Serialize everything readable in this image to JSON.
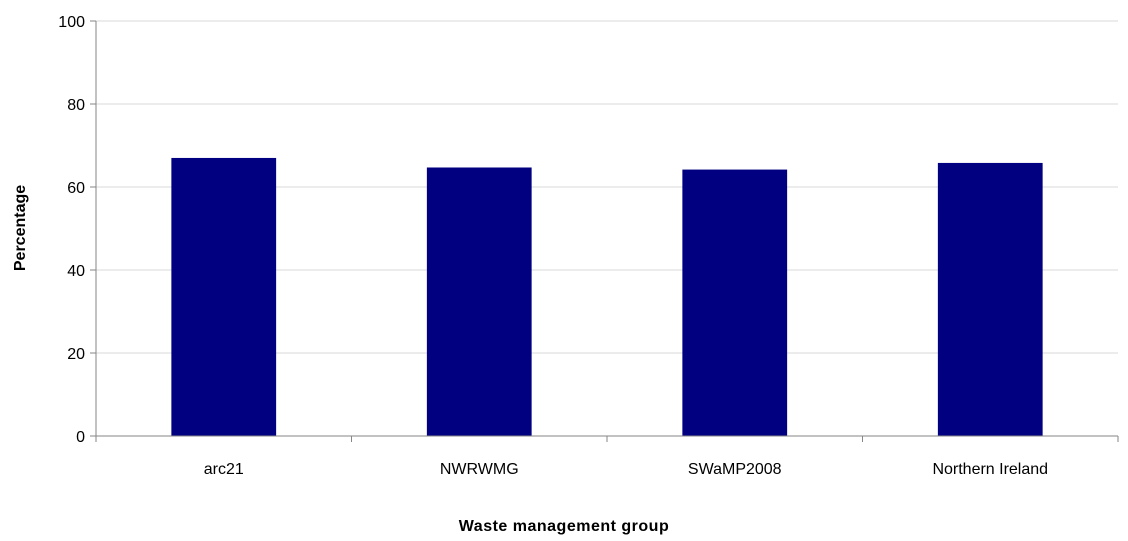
{
  "chart_data": {
    "type": "bar",
    "title": "",
    "xlabel": "Waste management group",
    "ylabel": "Percentage",
    "categories": [
      "arc21",
      "NWRWMG",
      "SWaMP2008",
      "Northern Ireland"
    ],
    "values": [
      67,
      64.7,
      64.2,
      65.8
    ],
    "ylim": [
      0,
      100
    ],
    "yticks": [
      0,
      20,
      40,
      60,
      80,
      100
    ],
    "grid": true,
    "legend": "none",
    "colors": {
      "bar": "#000080",
      "grid": "#d9d9d9",
      "axis": "#868686"
    }
  }
}
